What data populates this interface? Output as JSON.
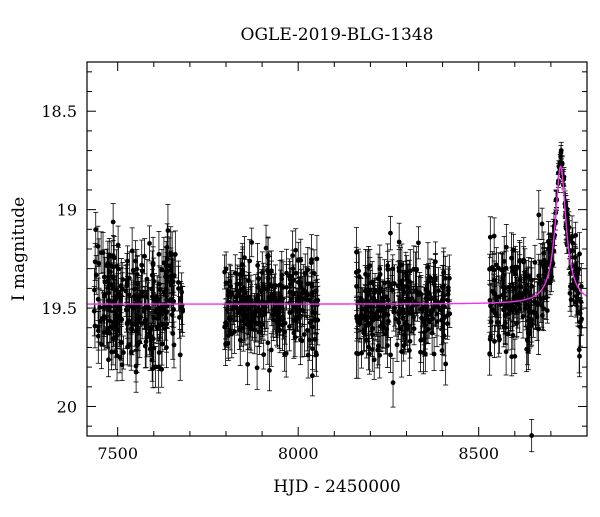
{
  "chart_data": {
    "type": "scatter",
    "title": "OGLE-2019-BLG-1348",
    "xlabel": "HJD - 2450000",
    "ylabel": "I magnitude",
    "xlim": [
      7415,
      8800
    ],
    "ylim": [
      20.15,
      18.25
    ],
    "y_inverted": true,
    "x_ticks": [
      7500,
      8000,
      8500
    ],
    "y_ticks": [
      18.5,
      19,
      19.5,
      20
    ],
    "x_tick_labels": [
      "7500",
      "8000",
      "8500"
    ],
    "y_tick_labels": [
      "18.5",
      "19",
      "19.5",
      "20"
    ],
    "grid": false,
    "legend": "none",
    "colors": {
      "data": "#000000",
      "model": "#ee33ee",
      "frame": "#000000"
    },
    "observing_seasons": [
      {
        "x_range": [
          7435,
          7680
        ],
        "mean_mag": 19.48,
        "scatter_mag": 0.15,
        "err_mag": 0.11
      },
      {
        "x_range": [
          7795,
          8055
        ],
        "mean_mag": 19.48,
        "scatter_mag": 0.13,
        "err_mag": 0.1
      },
      {
        "x_range": [
          8160,
          8420
        ],
        "mean_mag": 19.49,
        "scatter_mag": 0.13,
        "err_mag": 0.1
      },
      {
        "x_range": [
          8530,
          8785
        ],
        "mean_mag": 19.48,
        "scatter_mag": 0.14,
        "err_mag": 0.1
      }
    ],
    "model_curve": {
      "baseline_mag": 19.48,
      "peak_time": 8727,
      "peak_mag": 18.78,
      "half_width_days": 18
    },
    "data_peak": {
      "x": 8727,
      "y": 18.73
    }
  }
}
